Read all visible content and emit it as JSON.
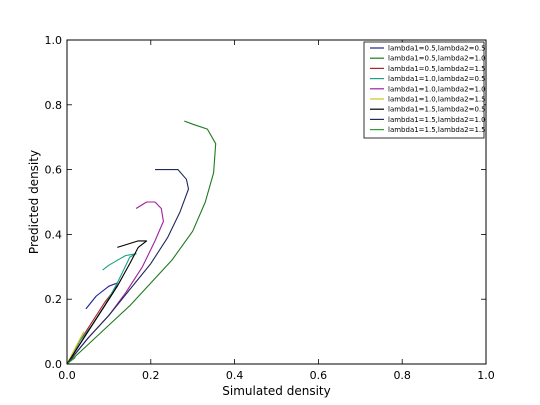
{
  "chart_data": {
    "type": "line",
    "title": "",
    "xlabel": "Simulated density",
    "ylabel": "Predicted density",
    "xlim": [
      0.0,
      1.0
    ],
    "ylim": [
      0.0,
      1.0
    ],
    "xticks": [
      "0.0",
      "0.2",
      "0.4",
      "0.6",
      "0.8",
      "1.0"
    ],
    "yticks": [
      "0.0",
      "0.2",
      "0.4",
      "0.6",
      "0.8",
      "1.0"
    ],
    "grid": false,
    "legend_position": "top-right",
    "series": [
      {
        "name": "lambda1=0.5,lambda2=0.5",
        "color": "#1f1f9e",
        "points": [
          [
            0,
            0
          ],
          [
            0.03,
            0.06
          ],
          [
            0.06,
            0.12
          ],
          [
            0.09,
            0.18
          ],
          [
            0.11,
            0.22
          ],
          [
            0.12,
            0.25
          ],
          [
            0.1,
            0.24
          ],
          [
            0.07,
            0.21
          ],
          [
            0.045,
            0.17
          ]
        ]
      },
      {
        "name": "lambda1=0.5,lambda2=1.0",
        "color": "#1f7a1f",
        "points": [
          [
            0,
            0
          ],
          [
            0.05,
            0.06
          ],
          [
            0.1,
            0.12
          ],
          [
            0.15,
            0.18
          ],
          [
            0.2,
            0.25
          ],
          [
            0.25,
            0.32
          ],
          [
            0.3,
            0.41
          ],
          [
            0.33,
            0.5
          ],
          [
            0.35,
            0.59
          ],
          [
            0.355,
            0.68
          ],
          [
            0.335,
            0.725
          ],
          [
            0.3,
            0.74
          ],
          [
            0.28,
            0.75
          ]
        ]
      },
      {
        "name": "lambda1=0.5,lambda2=1.5",
        "color": "#b5202b",
        "points": [
          [
            0,
            0
          ],
          [
            0.03,
            0.07
          ],
          [
            0.06,
            0.13
          ],
          [
            0.09,
            0.19
          ],
          [
            0.12,
            0.24
          ]
        ]
      },
      {
        "name": "lambda1=1.0,lambda2=0.5",
        "color": "#1aa085",
        "points": [
          [
            0,
            0
          ],
          [
            0.03,
            0.07
          ],
          [
            0.06,
            0.12
          ],
          [
            0.09,
            0.18
          ],
          [
            0.12,
            0.25
          ],
          [
            0.15,
            0.33
          ],
          [
            0.165,
            0.34
          ],
          [
            0.14,
            0.335
          ],
          [
            0.12,
            0.32
          ],
          [
            0.1,
            0.305
          ],
          [
            0.085,
            0.29
          ]
        ]
      },
      {
        "name": "lambda1=1.0,lambda2=1.0",
        "color": "#a020a0",
        "points": [
          [
            0,
            0
          ],
          [
            0.05,
            0.08
          ],
          [
            0.1,
            0.15
          ],
          [
            0.14,
            0.22
          ],
          [
            0.18,
            0.3
          ],
          [
            0.21,
            0.38
          ],
          [
            0.23,
            0.44
          ],
          [
            0.225,
            0.48
          ],
          [
            0.21,
            0.5
          ],
          [
            0.19,
            0.5
          ],
          [
            0.165,
            0.48
          ]
        ]
      },
      {
        "name": "lambda1=1.0,lambda2=1.5",
        "color": "#d6c21a",
        "points": [
          [
            0,
            0
          ],
          [
            0.02,
            0.05
          ],
          [
            0.04,
            0.1
          ]
        ]
      },
      {
        "name": "lambda1=1.5,lambda2=0.5",
        "color": "#000000",
        "points": [
          [
            0,
            0
          ],
          [
            0.04,
            0.08
          ],
          [
            0.08,
            0.16
          ],
          [
            0.12,
            0.24
          ],
          [
            0.15,
            0.31
          ],
          [
            0.17,
            0.36
          ],
          [
            0.19,
            0.38
          ],
          [
            0.19,
            0.38
          ],
          [
            0.17,
            0.38
          ],
          [
            0.145,
            0.37
          ],
          [
            0.12,
            0.36
          ]
        ]
      },
      {
        "name": "lambda1=1.5,lambda2=1.0",
        "color": "#1f2a5e",
        "points": [
          [
            0,
            0
          ],
          [
            0.05,
            0.08
          ],
          [
            0.1,
            0.15
          ],
          [
            0.15,
            0.23
          ],
          [
            0.2,
            0.31
          ],
          [
            0.24,
            0.39
          ],
          [
            0.27,
            0.47
          ],
          [
            0.29,
            0.54
          ],
          [
            0.285,
            0.57
          ],
          [
            0.265,
            0.6
          ],
          [
            0.25,
            0.6
          ],
          [
            0.21,
            0.6
          ]
        ]
      },
      {
        "name": "lambda1=1.5,lambda2=1.5",
        "color": "#2e9e2e",
        "points": [
          [
            0,
            0
          ],
          [
            0.02,
            0.02
          ]
        ]
      }
    ]
  }
}
